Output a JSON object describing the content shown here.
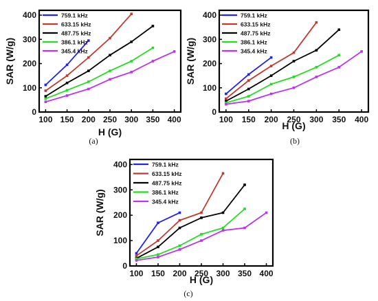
{
  "chart_data": [
    {
      "type": "line",
      "panel_label": "(a)",
      "xlabel": "H (G)",
      "ylabel": "SAR (W/g)",
      "xlim": [
        85,
        415
      ],
      "ylim": [
        0,
        420
      ],
      "xticks": [
        100,
        150,
        200,
        250,
        300,
        350,
        400
      ],
      "yticks": [
        0,
        100,
        200,
        300,
        400
      ],
      "legend": "top-left",
      "series": [
        {
          "name": "759.1 kHz",
          "color": "#2222ee",
          "x": [
            100,
            150,
            200
          ],
          "y": [
            112,
            195,
            295
          ]
        },
        {
          "name": "633.15 kHz",
          "color": "#c0392b",
          "x": [
            100,
            150,
            200,
            250,
            300
          ],
          "y": [
            88,
            150,
            225,
            305,
            405
          ]
        },
        {
          "name": "487.75 kHz",
          "color": "#000000",
          "x": [
            100,
            150,
            200,
            250,
            300,
            350
          ],
          "y": [
            65,
            120,
            170,
            235,
            290,
            355
          ]
        },
        {
          "name": "386.1 kHz",
          "color": "#22dd22",
          "x": [
            100,
            150,
            200,
            250,
            300,
            350
          ],
          "y": [
            55,
            90,
            125,
            170,
            210,
            265
          ]
        },
        {
          "name": "345.4 kHz",
          "color": "#bb33ee",
          "x": [
            100,
            150,
            200,
            250,
            300,
            350,
            400
          ],
          "y": [
            42,
            68,
            95,
            135,
            165,
            210,
            250
          ]
        }
      ]
    },
    {
      "type": "line",
      "panel_label": "(b)",
      "xlabel": "H (G)",
      "ylabel": "SAR (W/g)",
      "xlim": [
        85,
        415
      ],
      "ylim": [
        0,
        420
      ],
      "xticks": [
        100,
        150,
        200,
        250,
        300,
        350,
        400
      ],
      "yticks": [
        0,
        100,
        200,
        300,
        400
      ],
      "legend": "top-left",
      "series": [
        {
          "name": "759.1 kHz",
          "color": "#2222ee",
          "x": [
            100,
            150,
            200
          ],
          "y": [
            75,
            155,
            225
          ]
        },
        {
          "name": "633.15 kHz",
          "color": "#c0392b",
          "x": [
            100,
            150,
            200,
            250,
            300
          ],
          "y": [
            55,
            130,
            190,
            245,
            370
          ]
        },
        {
          "name": "487.75 kHz",
          "color": "#000000",
          "x": [
            100,
            150,
            200,
            250,
            300,
            350
          ],
          "y": [
            45,
            95,
            150,
            210,
            255,
            340
          ]
        },
        {
          "name": "386.1 kHz",
          "color": "#22dd22",
          "x": [
            100,
            150,
            200,
            250,
            300,
            350
          ],
          "y": [
            38,
            65,
            115,
            145,
            185,
            235
          ]
        },
        {
          "name": "345.4 kHz",
          "color": "#bb33ee",
          "x": [
            100,
            150,
            200,
            250,
            300,
            350,
            400
          ],
          "y": [
            32,
            45,
            75,
            100,
            145,
            185,
            250
          ]
        }
      ]
    },
    {
      "type": "line",
      "panel_label": "(c)",
      "xlabel": "H (G)",
      "ylabel": "SAR (W/g)",
      "xlim": [
        85,
        415
      ],
      "ylim": [
        0,
        420
      ],
      "xticks": [
        100,
        150,
        200,
        250,
        300,
        350,
        400
      ],
      "yticks": [
        0,
        100,
        200,
        300,
        400
      ],
      "legend": "top-left",
      "series": [
        {
          "name": "759.1 kHz",
          "color": "#2222ee",
          "x": [
            100,
            150,
            200
          ],
          "y": [
            50,
            170,
            210
          ]
        },
        {
          "name": "633.15 kHz",
          "color": "#c0392b",
          "x": [
            100,
            150,
            200,
            250,
            300
          ],
          "y": [
            40,
            100,
            180,
            210,
            365
          ]
        },
        {
          "name": "487.75 kHz",
          "color": "#000000",
          "x": [
            100,
            150,
            200,
            250,
            300,
            350
          ],
          "y": [
            30,
            75,
            150,
            190,
            210,
            320
          ]
        },
        {
          "name": "386.1 kHz",
          "color": "#22dd22",
          "x": [
            100,
            150,
            200,
            250,
            300,
            350
          ],
          "y": [
            28,
            45,
            80,
            125,
            150,
            225
          ]
        },
        {
          "name": "345.4 kHz",
          "color": "#bb33ee",
          "x": [
            100,
            150,
            200,
            250,
            300,
            350,
            400
          ],
          "y": [
            22,
            35,
            65,
            100,
            140,
            150,
            210
          ]
        }
      ]
    }
  ]
}
